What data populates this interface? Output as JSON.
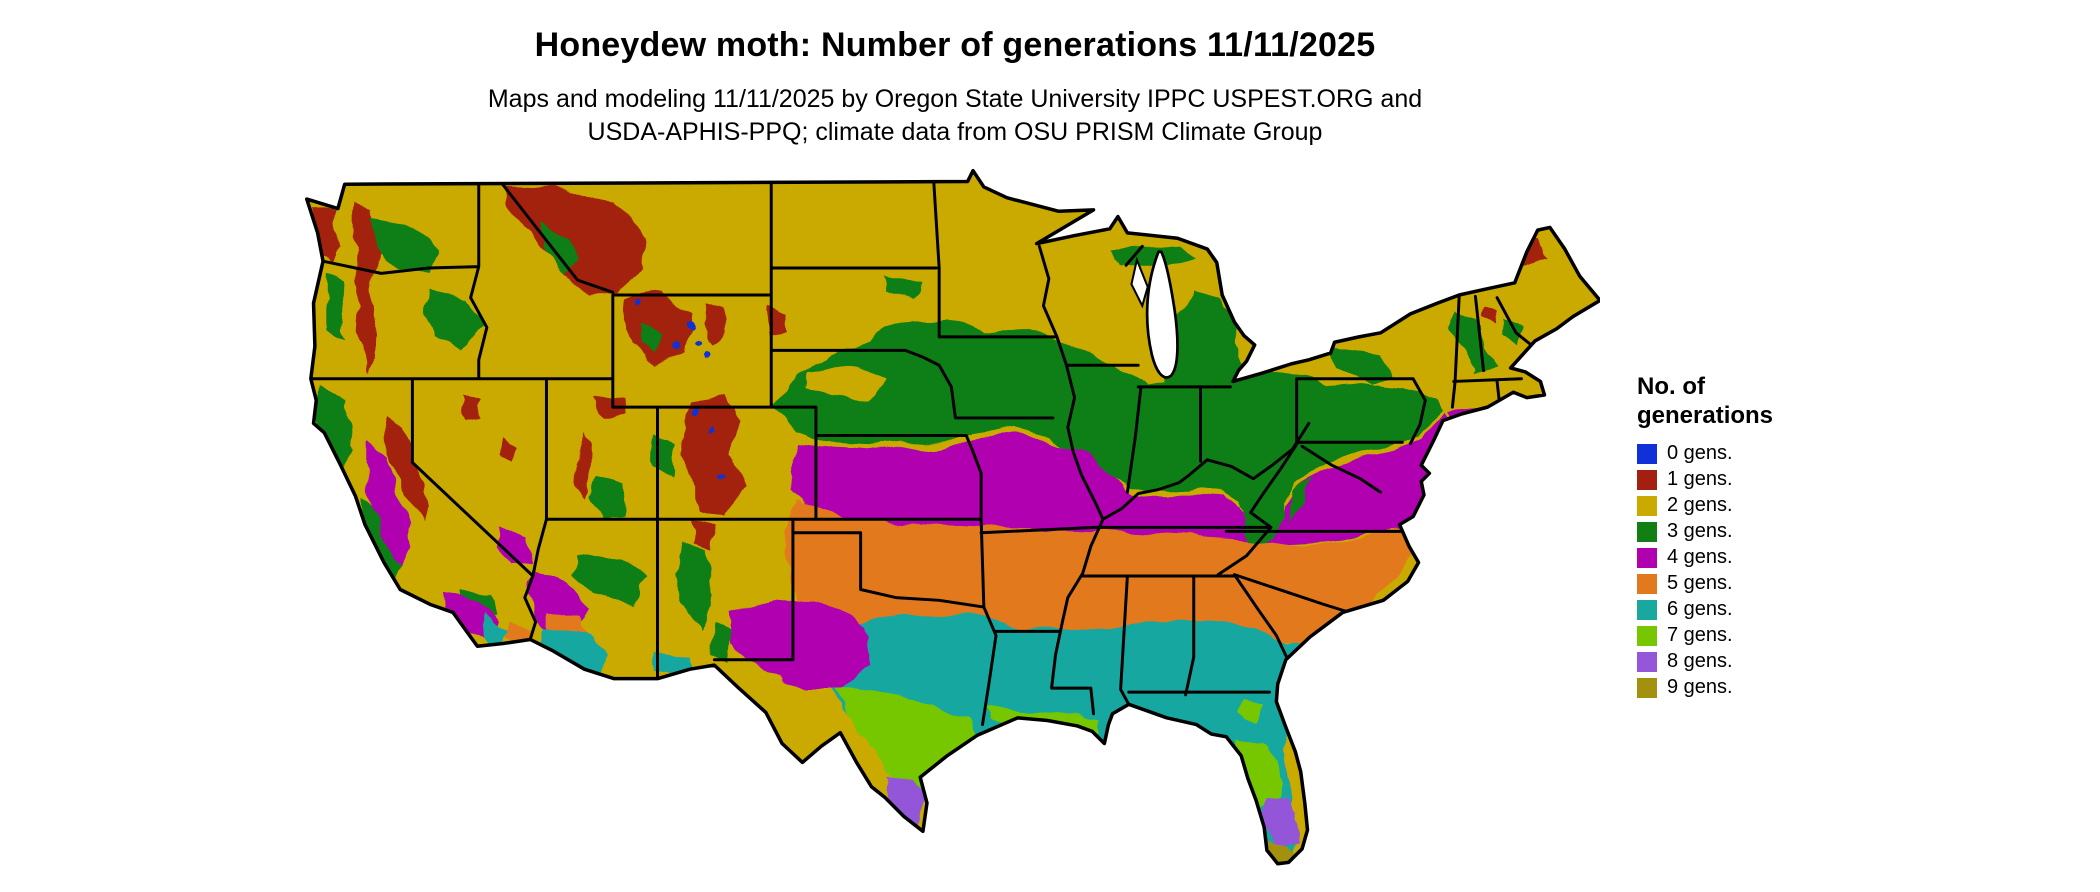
{
  "header": {
    "title": "Honeydew moth: Number of generations 11/11/2025",
    "subtitle_line1": "Maps and modeling 11/11/2025 by Oregon State University IPPC USPEST.ORG and",
    "subtitle_line2": "USDA-APHIS-PPQ; climate data from OSU PRISM Climate Group"
  },
  "legend": {
    "title_line1": "No. of",
    "title_line2": "generations",
    "items": [
      {
        "gens": 0,
        "label": "0 gens."
      },
      {
        "gens": 1,
        "label": "1 gens."
      },
      {
        "gens": 2,
        "label": "2 gens."
      },
      {
        "gens": 3,
        "label": "3 gens."
      },
      {
        "gens": 4,
        "label": "4 gens."
      },
      {
        "gens": 5,
        "label": "5 gens."
      },
      {
        "gens": 6,
        "label": "6 gens."
      },
      {
        "gens": 7,
        "label": "7 gens."
      },
      {
        "gens": 8,
        "label": "8 gens."
      },
      {
        "gens": 9,
        "label": "9 gens."
      }
    ]
  },
  "palette": {
    "0": "#1031d8",
    "1": "#a32010",
    "2": "#cbaa00",
    "3": "#117f12",
    "4": "#b000b0",
    "5": "#e2791f",
    "6": "#18a8a0",
    "7": "#76c702",
    "8": "#9457d9",
    "9": "#a3910e"
  },
  "map": {
    "description": "Choropleth map of the contiguous United States showing modeled number of honeydew moth generations; Great Lakes and ocean in white, black state borders",
    "zones_visible": [
      {
        "gens": 2,
        "area": "northern tier and interior West"
      },
      {
        "gens": 1,
        "area": "Rocky Mountains, Cascades, Sierra Nevada, northern Maine"
      },
      {
        "gens": 3,
        "area": "Midwest corn belt, Ohio Valley, Appalachians, Northwest uplands"
      },
      {
        "gens": 4,
        "area": "Kansas-Missouri-Kentucky-Virginia band, California Central Valley, Southwest deserts"
      },
      {
        "gens": 5,
        "area": "Oklahoma-Arkansas-Tennessee-Carolinas band, southern Arizona"
      },
      {
        "gens": 6,
        "area": "central Texas through Gulf states to northern Florida"
      },
      {
        "gens": 7,
        "area": "south Texas, Louisiana coast, central Florida"
      },
      {
        "gens": 8,
        "area": "Rio Grande Valley of Texas, south Florida"
      },
      {
        "gens": 9,
        "area": "Florida Keys"
      },
      {
        "gens": 0,
        "area": "high peaks of Wyoming and Colorado"
      }
    ]
  }
}
